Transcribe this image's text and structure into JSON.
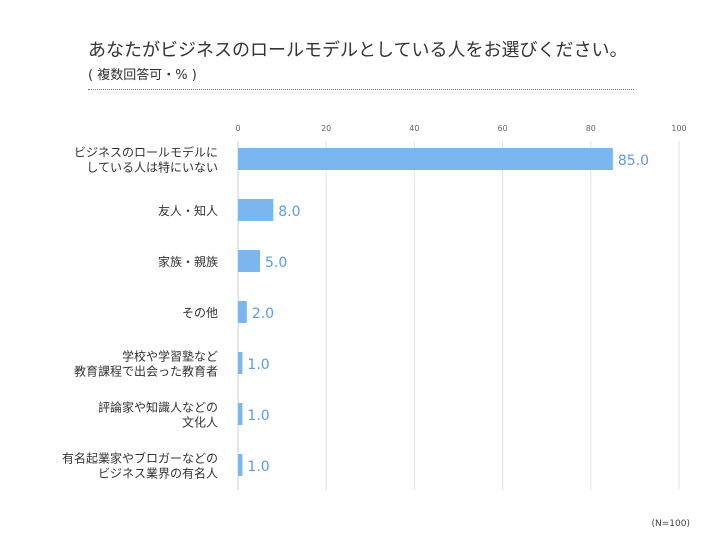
{
  "title": "あなたがビジネスのロールモデルとしている人をお選びください。",
  "subtitle": "( 複数回答可・% )",
  "note": "(N=100)",
  "colors": {
    "bar": "#7ab6f0",
    "label": "#5b9be0",
    "grid": "#e3e3e3"
  },
  "chart_data": {
    "type": "bar",
    "orientation": "horizontal",
    "xlim": [
      0,
      100
    ],
    "ticks": [
      0,
      20,
      40,
      60,
      80,
      100
    ],
    "grid": true,
    "categories": [
      [
        "ビジネスのロールモデルに",
        "している人は特にいない"
      ],
      [
        "友人・知人"
      ],
      [
        "家族・親族"
      ],
      [
        "その他"
      ],
      [
        "学校や学習塾など",
        "教育課程で出会った教育者"
      ],
      [
        "評論家や知識人などの",
        "文化人"
      ],
      [
        "有名起業家やブロガーなどの",
        "ビジネス業界の有名人"
      ]
    ],
    "values": [
      85.0,
      8.0,
      5.0,
      2.0,
      1.0,
      1.0,
      1.0
    ],
    "value_labels": [
      "85.0",
      "8.0",
      "5.0",
      "2.0",
      "1.0",
      "1.0",
      "1.0"
    ]
  }
}
